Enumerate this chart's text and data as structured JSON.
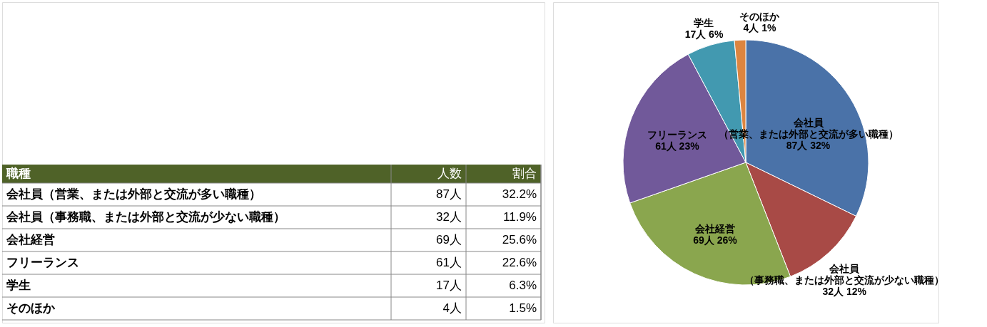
{
  "chart_data": [
    {
      "type": "other",
      "annotations": [
        "職種",
        "人数",
        "割合",
        "会社員（営業、または外部と交流が多い職種）",
        "87人",
        "32.2%",
        "会社員（事務職、または外部と交流が少ない職種）",
        "32人",
        "11.9%",
        "会社経営",
        "69人",
        "25.6%",
        "フリーランス",
        "61人",
        "22.6%",
        "学生",
        "17人",
        "6.3%",
        "そのほか",
        "4人",
        "1.5%"
      ]
    },
    {
      "type": "pie",
      "legend": false,
      "categories": [
        "会社員（営業、または外部と交流が多い職種）",
        "会社員（事務職、または外部と交流が少ない職種）",
        "会社経営",
        "フリーランス",
        "学生",
        "そのほか"
      ],
      "values": [
        87,
        32,
        69,
        61,
        17,
        4
      ],
      "value_labels": [
        "87人 32%",
        "32人 12%",
        "69人 26%",
        "61人 23%",
        "17人 6%",
        "4人 1%"
      ],
      "colors": [
        "#4a72a8",
        "#a84a46",
        "#8aa64e",
        "#71599a",
        "#4299b0",
        "#dd8540"
      ]
    }
  ]
}
